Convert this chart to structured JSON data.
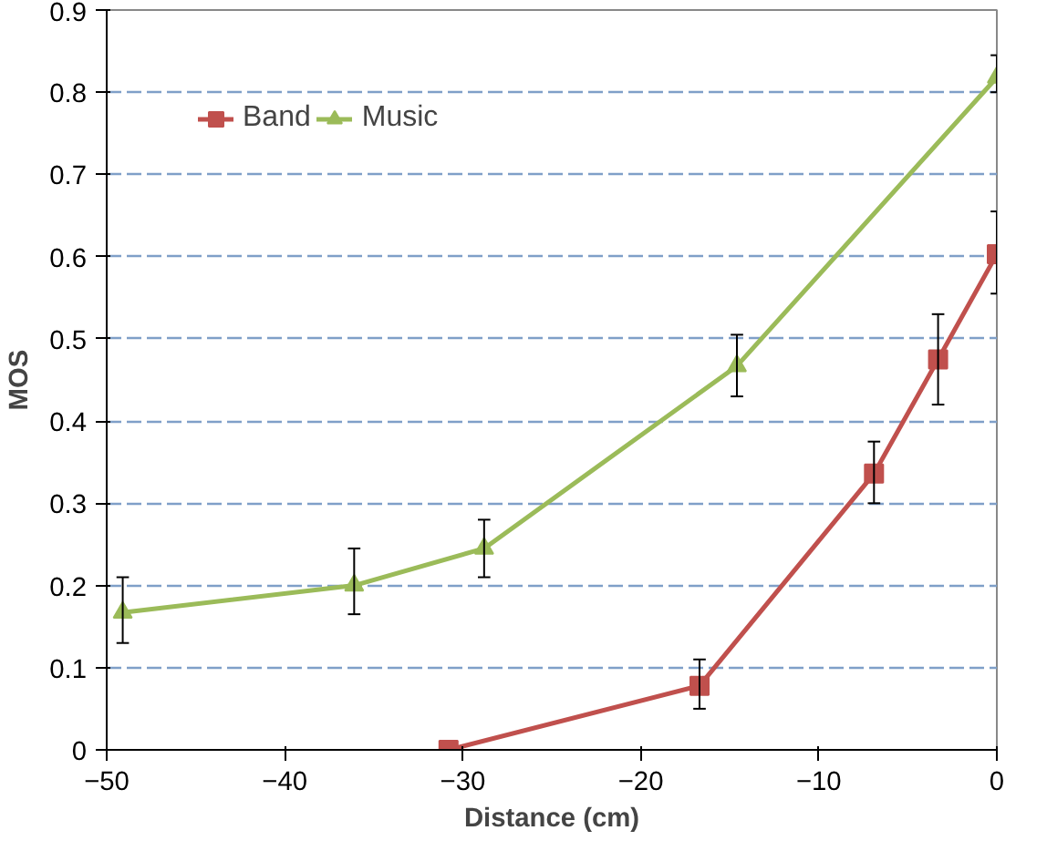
{
  "chart_data": {
    "type": "line",
    "xlabel": "Distance (cm)",
    "ylabel": "MOS",
    "xlim": [
      -50,
      0
    ],
    "xticks": [
      -50,
      -40,
      -30,
      -20,
      -10,
      0
    ],
    "ylim": [
      0,
      0.9
    ],
    "yticks": [
      0,
      0.1,
      0.2,
      0.3,
      0.4,
      0.5,
      0.6,
      0.7,
      0.8,
      0.9
    ],
    "grid": "y",
    "legend": "top left",
    "line_style": "solid",
    "series": [
      {
        "name": "Band",
        "color": "#c0504d",
        "marker": "square",
        "x": [
          -30.8,
          -16.7,
          -6.9,
          -3.3,
          0
        ],
        "values": [
          0,
          0.078,
          0.336,
          0.475,
          0.603
        ],
        "errors": [
          null,
          [
            0.05,
            0.11
          ],
          [
            0.3,
            0.375
          ],
          [
            0.42,
            0.53
          ],
          [
            0.555,
            0.655
          ]
        ]
      },
      {
        "name": "Music",
        "color": "#9bbb59",
        "marker": "triangle",
        "x": [
          -49.1,
          -36.1,
          -28.8,
          -14.6,
          0
        ],
        "values": [
          0.167,
          0.2,
          0.245,
          0.467,
          0.818
        ],
        "errors": [
          [
            0.13,
            0.21
          ],
          [
            0.165,
            0.245
          ],
          [
            0.21,
            0.28
          ],
          [
            0.43,
            0.505
          ],
          [
            0.8,
            0.845
          ]
        ]
      }
    ]
  }
}
